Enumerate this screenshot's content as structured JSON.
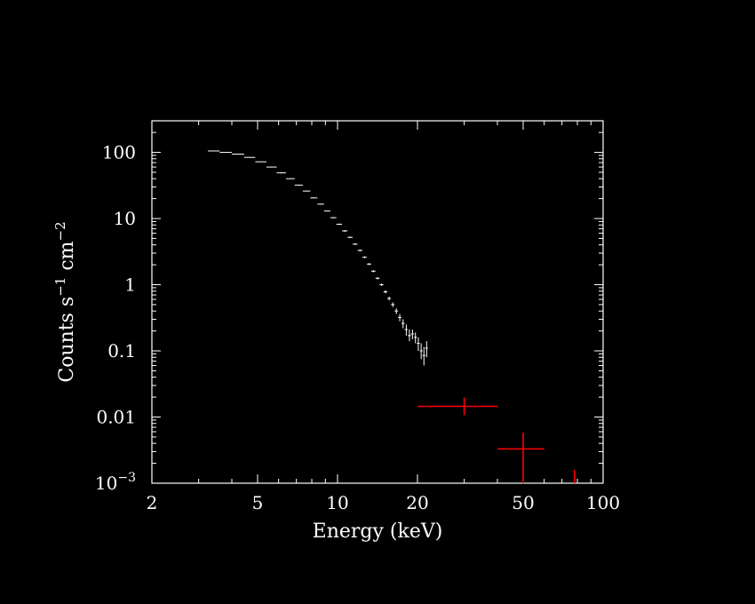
{
  "chart_data": {
    "type": "scatter",
    "title": "",
    "xlabel": "Energy (keV)",
    "ylabel": "Counts s^-1 cm^-2",
    "ylabel_parts": {
      "base": "Counts s",
      "sup1": "−1",
      "mid": " cm",
      "sup2": "−2"
    },
    "x_scale": "log",
    "y_scale": "log",
    "xlim": [
      2,
      100
    ],
    "ylim": [
      0.001,
      300
    ],
    "x_ticks": [
      {
        "value": 2,
        "label": "2"
      },
      {
        "value": 5,
        "label": "5"
      },
      {
        "value": 10,
        "label": "10"
      },
      {
        "value": 20,
        "label": "20"
      },
      {
        "value": 50,
        "label": "50"
      },
      {
        "value": 100,
        "label": "100"
      }
    ],
    "y_ticks": [
      {
        "value": 100,
        "label": "100"
      },
      {
        "value": 10,
        "label": "10"
      },
      {
        "value": 1,
        "label": "1"
      },
      {
        "value": 0.1,
        "label": "0.1"
      },
      {
        "value": 0.01,
        "label": "0.01"
      },
      {
        "value": 0.001,
        "label_base": "10",
        "label_sup": "−3"
      }
    ],
    "grid": false,
    "background": "#000000",
    "series": [
      {
        "color": "#ffffff",
        "points": [
          {
            "x": 3.4,
            "xlo": 3.25,
            "xhi": 3.6,
            "y": 105,
            "ylo": 104,
            "yhi": 106
          },
          {
            "x": 3.8,
            "xlo": 3.6,
            "xhi": 4.0,
            "y": 100,
            "ylo": 99,
            "yhi": 101
          },
          {
            "x": 4.2,
            "xlo": 4.0,
            "xhi": 4.45,
            "y": 94,
            "ylo": 93,
            "yhi": 95
          },
          {
            "x": 4.7,
            "xlo": 4.45,
            "xhi": 4.9,
            "y": 84,
            "ylo": 83,
            "yhi": 85
          },
          {
            "x": 5.15,
            "xlo": 4.9,
            "xhi": 5.4,
            "y": 72,
            "ylo": 71,
            "yhi": 73
          },
          {
            "x": 5.65,
            "xlo": 5.4,
            "xhi": 5.9,
            "y": 60,
            "ylo": 59,
            "yhi": 61
          },
          {
            "x": 6.15,
            "xlo": 5.9,
            "xhi": 6.4,
            "y": 49,
            "ylo": 48,
            "yhi": 50
          },
          {
            "x": 6.65,
            "xlo": 6.4,
            "xhi": 6.9,
            "y": 40,
            "ylo": 39.5,
            "yhi": 40.5
          },
          {
            "x": 7.15,
            "xlo": 6.9,
            "xhi": 7.4,
            "y": 32,
            "ylo": 31.5,
            "yhi": 32.5
          },
          {
            "x": 7.65,
            "xlo": 7.4,
            "xhi": 7.9,
            "y": 26,
            "ylo": 25.6,
            "yhi": 26.4
          },
          {
            "x": 8.15,
            "xlo": 7.9,
            "xhi": 8.4,
            "y": 20.5,
            "ylo": 20.2,
            "yhi": 20.8
          },
          {
            "x": 8.65,
            "xlo": 8.4,
            "xhi": 8.9,
            "y": 16.5,
            "ylo": 16.2,
            "yhi": 16.8
          },
          {
            "x": 9.15,
            "xlo": 8.9,
            "xhi": 9.4,
            "y": 13,
            "ylo": 12.8,
            "yhi": 13.2
          },
          {
            "x": 9.65,
            "xlo": 9.4,
            "xhi": 9.9,
            "y": 10.3,
            "ylo": 10.1,
            "yhi": 10.5
          },
          {
            "x": 10.15,
            "xlo": 9.9,
            "xhi": 10.4,
            "y": 8.2,
            "ylo": 8.0,
            "yhi": 8.4
          },
          {
            "x": 10.65,
            "xlo": 10.4,
            "xhi": 10.9,
            "y": 6.5,
            "ylo": 6.3,
            "yhi": 6.7
          },
          {
            "x": 11.15,
            "xlo": 10.9,
            "xhi": 11.4,
            "y": 5.2,
            "ylo": 5.05,
            "yhi": 5.35
          },
          {
            "x": 11.65,
            "xlo": 11.4,
            "xhi": 11.9,
            "y": 4.1,
            "ylo": 3.98,
            "yhi": 4.22
          },
          {
            "x": 12.15,
            "xlo": 11.9,
            "xhi": 12.4,
            "y": 3.3,
            "ylo": 3.2,
            "yhi": 3.4
          },
          {
            "x": 12.65,
            "xlo": 12.4,
            "xhi": 12.9,
            "y": 2.6,
            "ylo": 2.52,
            "yhi": 2.68
          },
          {
            "x": 13.15,
            "xlo": 12.9,
            "xhi": 13.4,
            "y": 2.05,
            "ylo": 1.98,
            "yhi": 2.12
          },
          {
            "x": 13.65,
            "xlo": 13.4,
            "xhi": 13.9,
            "y": 1.6,
            "ylo": 1.54,
            "yhi": 1.66
          },
          {
            "x": 14.15,
            "xlo": 13.9,
            "xhi": 14.4,
            "y": 1.25,
            "ylo": 1.2,
            "yhi": 1.3
          },
          {
            "x": 14.65,
            "xlo": 14.4,
            "xhi": 14.9,
            "y": 1.0,
            "ylo": 0.96,
            "yhi": 1.04
          },
          {
            "x": 15.15,
            "xlo": 14.9,
            "xhi": 15.4,
            "y": 0.78,
            "ylo": 0.74,
            "yhi": 0.82
          },
          {
            "x": 15.65,
            "xlo": 15.4,
            "xhi": 15.9,
            "y": 0.62,
            "ylo": 0.58,
            "yhi": 0.66
          },
          {
            "x": 16.15,
            "xlo": 15.9,
            "xhi": 16.4,
            "y": 0.5,
            "ylo": 0.46,
            "yhi": 0.54
          },
          {
            "x": 16.65,
            "xlo": 16.4,
            "xhi": 16.9,
            "y": 0.4,
            "ylo": 0.36,
            "yhi": 0.44
          },
          {
            "x": 17.15,
            "xlo": 16.9,
            "xhi": 17.4,
            "y": 0.32,
            "ylo": 0.28,
            "yhi": 0.36
          },
          {
            "x": 17.65,
            "xlo": 17.4,
            "xhi": 17.9,
            "y": 0.26,
            "ylo": 0.22,
            "yhi": 0.3
          },
          {
            "x": 18.15,
            "xlo": 17.9,
            "xhi": 18.4,
            "y": 0.21,
            "ylo": 0.17,
            "yhi": 0.25
          },
          {
            "x": 18.65,
            "xlo": 18.4,
            "xhi": 18.9,
            "y": 0.17,
            "ylo": 0.14,
            "yhi": 0.21
          },
          {
            "x": 19.15,
            "xlo": 18.9,
            "xhi": 19.4,
            "y": 0.18,
            "ylo": 0.15,
            "yhi": 0.21
          },
          {
            "x": 19.65,
            "xlo": 19.4,
            "xhi": 19.9,
            "y": 0.16,
            "ylo": 0.13,
            "yhi": 0.19
          },
          {
            "x": 20.15,
            "xlo": 19.9,
            "xhi": 20.4,
            "y": 0.13,
            "ylo": 0.1,
            "yhi": 0.16
          },
          {
            "x": 20.65,
            "xlo": 20.4,
            "xhi": 20.9,
            "y": 0.1,
            "ylo": 0.075,
            "yhi": 0.13
          },
          {
            "x": 21.15,
            "xlo": 20.9,
            "xhi": 21.4,
            "y": 0.085,
            "ylo": 0.06,
            "yhi": 0.115
          },
          {
            "x": 21.65,
            "xlo": 21.4,
            "xhi": 21.9,
            "y": 0.11,
            "ylo": 0.08,
            "yhi": 0.14
          }
        ]
      },
      {
        "color": "#ff0000",
        "points": [
          {
            "x": 30,
            "xlo": 20,
            "xhi": 40,
            "y": 0.0145,
            "ylo": 0.0107,
            "yhi": 0.0196
          },
          {
            "x": 50,
            "xlo": 40,
            "xhi": 60,
            "y": 0.0033,
            "ylo": 0.001,
            "yhi": 0.0058
          },
          {
            "x": 78,
            "xlo": 78,
            "xhi": 78,
            "y": 0.0012,
            "ylo": 0.001,
            "yhi": 0.0016
          }
        ]
      }
    ]
  }
}
